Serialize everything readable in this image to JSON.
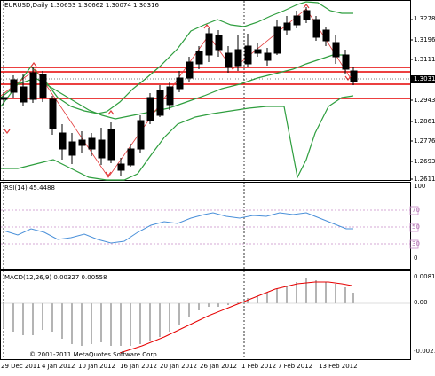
{
  "main": {
    "header": "EURUSD,Daily  1.30653 1.30662 1.30074 1.30316",
    "price_labels": [
      "1.32785",
      "1.31960",
      "1.31110",
      "1.30316",
      "1.29435",
      "1.28610",
      "1.27760",
      "1.26935",
      "1.26110"
    ],
    "current_price": "1.30316"
  },
  "rsi": {
    "header": "RSI(14) 45.4488",
    "levels": [
      "100",
      "70",
      "50",
      "30",
      "0"
    ],
    "level_tags": [
      "70",
      "50",
      "30"
    ]
  },
  "macd": {
    "header": "MACD(12,26,9) 0.00327 0.00558",
    "levels": [
      "0.0081",
      "0.00",
      "-0.0021"
    ],
    "copyright": "© 2001-2011 MetaQuotes Software Corp."
  },
  "xaxis": {
    "dates": [
      "29 Dec 2011",
      "4 Jan 2012",
      "10 Jan 2012",
      "16 Jan 2012",
      "20 Jan 2012",
      "26 Jan 2012",
      "1 Feb 2012",
      "7 Feb 2012",
      "13 Feb 2012"
    ]
  },
  "colors": {
    "bollinger": "#2e9e3e",
    "trendline": "#e23a3a",
    "hline": "#e60000",
    "rsi_line": "#4a90d9",
    "macd_signal": "#e60000",
    "macd_hist": "#b4b4b4",
    "level_dotted": "#c88cc8"
  }
}
